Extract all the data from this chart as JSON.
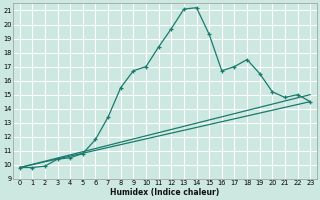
{
  "title": "",
  "xlabel": "Humidex (Indice chaleur)",
  "bg_color": "#cce8e0",
  "grid_color": "#ffffff",
  "line_color": "#1a7a6e",
  "xlim": [
    -0.5,
    23.5
  ],
  "ylim": [
    9,
    21.5
  ],
  "yticks": [
    9,
    10,
    11,
    12,
    13,
    14,
    15,
    16,
    17,
    18,
    19,
    20,
    21
  ],
  "xticks": [
    0,
    1,
    2,
    3,
    4,
    5,
    6,
    7,
    8,
    9,
    10,
    11,
    12,
    13,
    14,
    15,
    16,
    17,
    18,
    19,
    20,
    21,
    22,
    23
  ],
  "line1_x": [
    0,
    1,
    2,
    3,
    4,
    5,
    6,
    7,
    8,
    9,
    10,
    11,
    12,
    13,
    14,
    15,
    16,
    17,
    18,
    19,
    20,
    21,
    22,
    23
  ],
  "line1_y": [
    9.8,
    9.8,
    9.9,
    10.4,
    10.5,
    10.8,
    11.8,
    13.4,
    15.5,
    16.7,
    17.0,
    18.4,
    19.7,
    21.1,
    21.2,
    19.3,
    16.7,
    17.0,
    17.5,
    16.5,
    15.2,
    14.8,
    15.0,
    14.5
  ],
  "line2_x": [
    0,
    23
  ],
  "line2_y": [
    9.8,
    15.0
  ],
  "line3_x": [
    0,
    23
  ],
  "line3_y": [
    9.8,
    14.5
  ],
  "figsize": [
    3.2,
    2.0
  ],
  "dpi": 100
}
